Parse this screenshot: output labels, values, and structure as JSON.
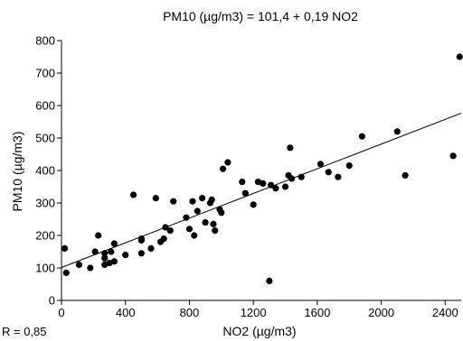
{
  "chart_data": {
    "type": "scatter",
    "title": "PM10 (µg/m3) = 101,4 + 0,19 NO2",
    "xlabel": "NO2 (µg/m3)",
    "ylabel": "PM10 (µg/m3)",
    "xlim": [
      0,
      2500
    ],
    "ylim": [
      0,
      800
    ],
    "xticks": [
      0,
      400,
      800,
      1200,
      1600,
      2000,
      2400
    ],
    "yticks": [
      0,
      100,
      200,
      300,
      400,
      500,
      600,
      700,
      800
    ],
    "xtick_labels": [
      "0",
      "400",
      "800",
      "1200",
      "1600",
      "2000",
      "2400"
    ],
    "ytick_labels": [
      "0",
      "100",
      "200",
      "300",
      "400",
      "500",
      "600",
      "700",
      "800"
    ],
    "grid": false,
    "annotation": "R = 0,85",
    "regression": {
      "intercept": 101.4,
      "slope": 0.19
    },
    "points": [
      [
        20,
        160
      ],
      [
        30,
        85
      ],
      [
        110,
        110
      ],
      [
        180,
        100
      ],
      [
        210,
        150
      ],
      [
        230,
        200
      ],
      [
        270,
        110
      ],
      [
        270,
        130
      ],
      [
        270,
        145
      ],
      [
        300,
        115
      ],
      [
        310,
        150
      ],
      [
        330,
        120
      ],
      [
        330,
        175
      ],
      [
        400,
        140
      ],
      [
        450,
        325
      ],
      [
        500,
        145
      ],
      [
        500,
        185
      ],
      [
        500,
        190
      ],
      [
        560,
        160
      ],
      [
        590,
        315
      ],
      [
        620,
        180
      ],
      [
        640,
        190
      ],
      [
        650,
        225
      ],
      [
        680,
        215
      ],
      [
        700,
        305
      ],
      [
        780,
        255
      ],
      [
        800,
        220
      ],
      [
        820,
        305
      ],
      [
        830,
        200
      ],
      [
        850,
        275
      ],
      [
        880,
        315
      ],
      [
        900,
        240
      ],
      [
        930,
        300
      ],
      [
        940,
        310
      ],
      [
        950,
        235
      ],
      [
        960,
        215
      ],
      [
        990,
        280
      ],
      [
        1000,
        270
      ],
      [
        1010,
        405
      ],
      [
        1040,
        425
      ],
      [
        1130,
        365
      ],
      [
        1150,
        330
      ],
      [
        1200,
        295
      ],
      [
        1230,
        365
      ],
      [
        1260,
        360
      ],
      [
        1300,
        60
      ],
      [
        1310,
        355
      ],
      [
        1340,
        345
      ],
      [
        1400,
        350
      ],
      [
        1420,
        385
      ],
      [
        1430,
        470
      ],
      [
        1440,
        375
      ],
      [
        1500,
        380
      ],
      [
        1620,
        420
      ],
      [
        1670,
        395
      ],
      [
        1730,
        380
      ],
      [
        1800,
        415
      ],
      [
        1880,
        505
      ],
      [
        2100,
        520
      ],
      [
        2150,
        385
      ],
      [
        2450,
        445
      ],
      [
        2490,
        750
      ]
    ]
  }
}
